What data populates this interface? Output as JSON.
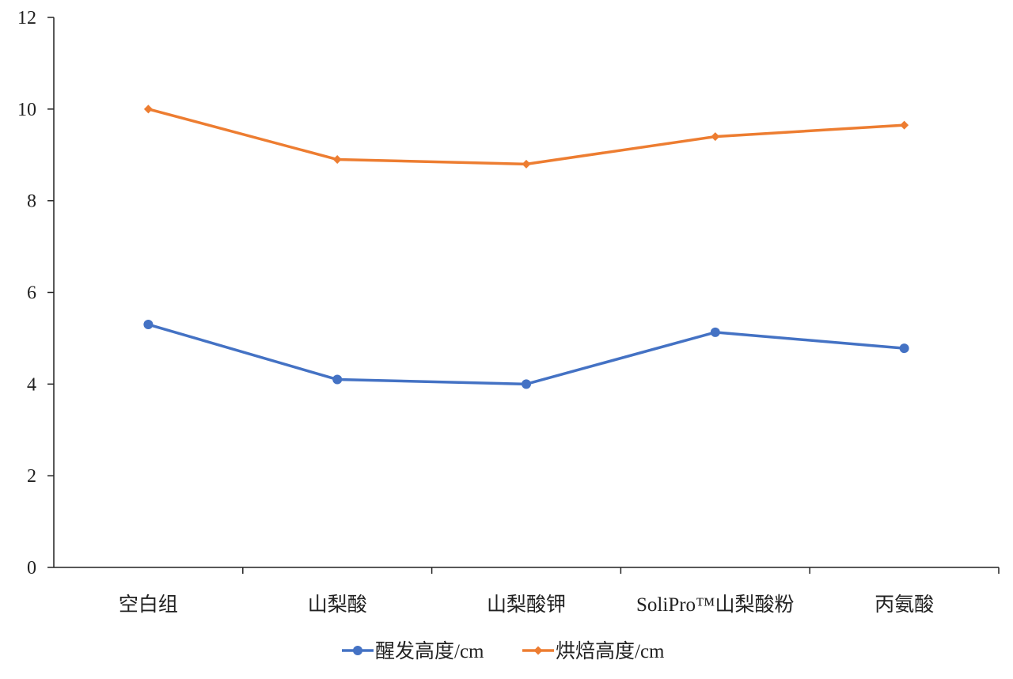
{
  "chart_data": {
    "type": "line",
    "categories": [
      "空白组",
      "山梨酸",
      "山梨酸钾",
      "SoliPro™山梨酸粉",
      "丙氨酸"
    ],
    "series": [
      {
        "name": "醒发高度/cm",
        "values": [
          5.3,
          4.1,
          4.0,
          5.13,
          4.78
        ],
        "color": "#4472C4",
        "marker": "circle"
      },
      {
        "name": "烘焙高度/cm",
        "values": [
          10.0,
          8.9,
          8.8,
          9.4,
          9.65
        ],
        "color": "#ED7D31",
        "marker": "diamond"
      }
    ],
    "yticks": [
      "0",
      "2",
      "4",
      "6",
      "8",
      "10",
      "12"
    ],
    "ylim": [
      0,
      12
    ],
    "title": "",
    "xlabel": "",
    "ylabel": "",
    "grid": false,
    "legend_position": "bottom"
  }
}
